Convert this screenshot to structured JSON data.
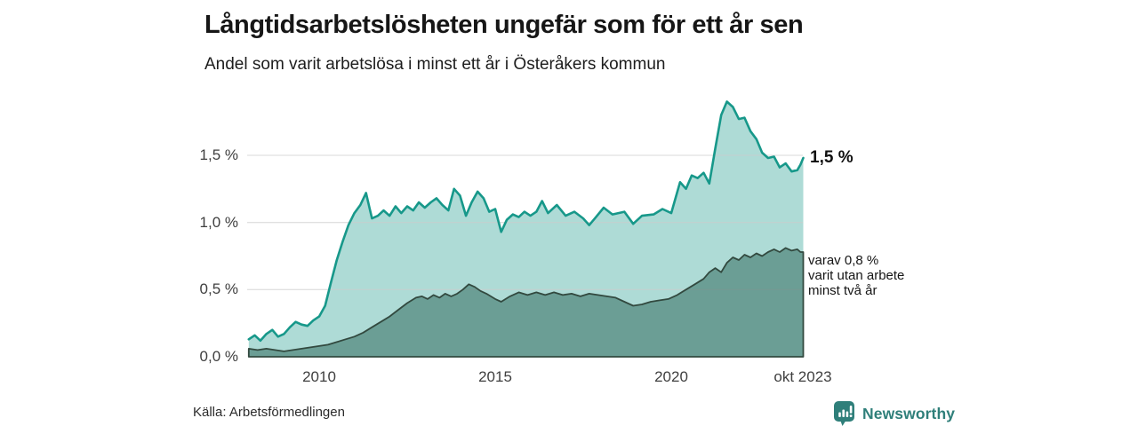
{
  "title": "Långtidsarbetslösheten ungefär som för ett år sen",
  "subtitle": "Andel som varit arbetslösa i minst ett år i Österåkers kommun",
  "source": "Källa: Arbetsförmedlingen",
  "brand": {
    "name": "Newsworthy",
    "color": "#2f7f7a"
  },
  "annotations": {
    "end_value_total": "1,5 %",
    "end_secondary_lines": [
      "varav 0,8 %",
      "varit utan arbete",
      "minst två år"
    ]
  },
  "y_axis": {
    "ticks": [
      {
        "label": "0,0 %",
        "value": 0.0
      },
      {
        "label": "0,5 %",
        "value": 0.5
      },
      {
        "label": "1,0 %",
        "value": 1.0
      },
      {
        "label": "1,5 %",
        "value": 1.5
      }
    ]
  },
  "x_axis": {
    "ticks": [
      {
        "label": "2010",
        "year": 2010
      },
      {
        "label": "2015",
        "year": 2015
      },
      {
        "label": "2020",
        "year": 2020
      },
      {
        "label": "okt 2023",
        "year": 2023.75
      }
    ]
  },
  "chart_data": {
    "type": "area",
    "title": "Långtidsarbetslösheten ungefär som för ett år sen",
    "subtitle": "Andel som varit arbetslösa i minst ett år i Österåkers kommun",
    "unit": "%",
    "x_range": [
      2008,
      2023.75
    ],
    "ylim": [
      0,
      1.9
    ],
    "grid": true,
    "colors": {
      "total_line": "#17988a",
      "total_fill": "rgba(23,152,138,0.35)",
      "secondary_line": "#32493f",
      "secondary_fill": "rgba(53,107,96,0.55)",
      "gridline": "#cccccc"
    },
    "series": [
      {
        "name": "Andel arbetslösa minst ett år",
        "end_label": "1,5 %",
        "points": [
          [
            2008.0,
            0.13
          ],
          [
            2008.17,
            0.16
          ],
          [
            2008.33,
            0.12
          ],
          [
            2008.5,
            0.17
          ],
          [
            2008.67,
            0.2
          ],
          [
            2008.83,
            0.15
          ],
          [
            2009.0,
            0.17
          ],
          [
            2009.17,
            0.22
          ],
          [
            2009.33,
            0.26
          ],
          [
            2009.5,
            0.24
          ],
          [
            2009.67,
            0.23
          ],
          [
            2009.83,
            0.27
          ],
          [
            2010.0,
            0.3
          ],
          [
            2010.17,
            0.38
          ],
          [
            2010.33,
            0.55
          ],
          [
            2010.5,
            0.72
          ],
          [
            2010.67,
            0.86
          ],
          [
            2010.83,
            0.98
          ],
          [
            2011.0,
            1.07
          ],
          [
            2011.17,
            1.13
          ],
          [
            2011.33,
            1.22
          ],
          [
            2011.42,
            1.12
          ],
          [
            2011.5,
            1.03
          ],
          [
            2011.67,
            1.05
          ],
          [
            2011.83,
            1.09
          ],
          [
            2012.0,
            1.05
          ],
          [
            2012.17,
            1.12
          ],
          [
            2012.33,
            1.07
          ],
          [
            2012.5,
            1.12
          ],
          [
            2012.67,
            1.09
          ],
          [
            2012.83,
            1.15
          ],
          [
            2013.0,
            1.11
          ],
          [
            2013.17,
            1.15
          ],
          [
            2013.33,
            1.18
          ],
          [
            2013.5,
            1.13
          ],
          [
            2013.67,
            1.09
          ],
          [
            2013.83,
            1.25
          ],
          [
            2014.0,
            1.2
          ],
          [
            2014.17,
            1.05
          ],
          [
            2014.33,
            1.15
          ],
          [
            2014.5,
            1.23
          ],
          [
            2014.67,
            1.18
          ],
          [
            2014.83,
            1.08
          ],
          [
            2015.0,
            1.1
          ],
          [
            2015.17,
            0.93
          ],
          [
            2015.33,
            1.02
          ],
          [
            2015.5,
            1.06
          ],
          [
            2015.67,
            1.04
          ],
          [
            2015.83,
            1.08
          ],
          [
            2016.0,
            1.05
          ],
          [
            2016.17,
            1.08
          ],
          [
            2016.33,
            1.16
          ],
          [
            2016.5,
            1.07
          ],
          [
            2016.75,
            1.13
          ],
          [
            2017.0,
            1.05
          ],
          [
            2017.25,
            1.08
          ],
          [
            2017.5,
            1.03
          ],
          [
            2017.67,
            0.98
          ],
          [
            2017.83,
            1.03
          ],
          [
            2018.08,
            1.11
          ],
          [
            2018.33,
            1.06
          ],
          [
            2018.67,
            1.08
          ],
          [
            2018.92,
            0.99
          ],
          [
            2019.17,
            1.05
          ],
          [
            2019.5,
            1.06
          ],
          [
            2019.75,
            1.1
          ],
          [
            2020.0,
            1.07
          ],
          [
            2020.25,
            1.3
          ],
          [
            2020.42,
            1.25
          ],
          [
            2020.58,
            1.35
          ],
          [
            2020.75,
            1.33
          ],
          [
            2020.92,
            1.37
          ],
          [
            2021.08,
            1.29
          ],
          [
            2021.25,
            1.55
          ],
          [
            2021.42,
            1.8
          ],
          [
            2021.58,
            1.9
          ],
          [
            2021.75,
            1.86
          ],
          [
            2021.92,
            1.77
          ],
          [
            2022.08,
            1.78
          ],
          [
            2022.25,
            1.68
          ],
          [
            2022.42,
            1.62
          ],
          [
            2022.58,
            1.52
          ],
          [
            2022.75,
            1.48
          ],
          [
            2022.92,
            1.49
          ],
          [
            2023.08,
            1.41
          ],
          [
            2023.25,
            1.44
          ],
          [
            2023.42,
            1.38
          ],
          [
            2023.58,
            1.39
          ],
          [
            2023.67,
            1.43
          ],
          [
            2023.75,
            1.48
          ]
        ]
      },
      {
        "name": "varav utan arbete minst två år",
        "end_label": "varav 0,8 %",
        "points": [
          [
            2008.0,
            0.06
          ],
          [
            2008.25,
            0.05
          ],
          [
            2008.5,
            0.06
          ],
          [
            2008.75,
            0.05
          ],
          [
            2009.0,
            0.04
          ],
          [
            2009.25,
            0.05
          ],
          [
            2009.5,
            0.06
          ],
          [
            2009.75,
            0.07
          ],
          [
            2010.0,
            0.08
          ],
          [
            2010.25,
            0.09
          ],
          [
            2010.5,
            0.11
          ],
          [
            2010.75,
            0.13
          ],
          [
            2011.0,
            0.15
          ],
          [
            2011.25,
            0.18
          ],
          [
            2011.5,
            0.22
          ],
          [
            2011.75,
            0.26
          ],
          [
            2012.0,
            0.3
          ],
          [
            2012.25,
            0.35
          ],
          [
            2012.5,
            0.4
          ],
          [
            2012.75,
            0.44
          ],
          [
            2012.92,
            0.45
          ],
          [
            2013.08,
            0.43
          ],
          [
            2013.25,
            0.46
          ],
          [
            2013.42,
            0.44
          ],
          [
            2013.58,
            0.47
          ],
          [
            2013.75,
            0.45
          ],
          [
            2013.92,
            0.47
          ],
          [
            2014.08,
            0.5
          ],
          [
            2014.25,
            0.54
          ],
          [
            2014.42,
            0.52
          ],
          [
            2014.58,
            0.49
          ],
          [
            2014.75,
            0.47
          ],
          [
            2015.0,
            0.43
          ],
          [
            2015.17,
            0.41
          ],
          [
            2015.42,
            0.45
          ],
          [
            2015.67,
            0.48
          ],
          [
            2015.92,
            0.46
          ],
          [
            2016.17,
            0.48
          ],
          [
            2016.42,
            0.46
          ],
          [
            2016.67,
            0.48
          ],
          [
            2016.92,
            0.46
          ],
          [
            2017.17,
            0.47
          ],
          [
            2017.42,
            0.45
          ],
          [
            2017.67,
            0.47
          ],
          [
            2017.92,
            0.46
          ],
          [
            2018.17,
            0.45
          ],
          [
            2018.42,
            0.44
          ],
          [
            2018.67,
            0.41
          ],
          [
            2018.92,
            0.38
          ],
          [
            2019.17,
            0.39
          ],
          [
            2019.42,
            0.41
          ],
          [
            2019.67,
            0.42
          ],
          [
            2019.92,
            0.43
          ],
          [
            2020.17,
            0.46
          ],
          [
            2020.42,
            0.5
          ],
          [
            2020.67,
            0.54
          ],
          [
            2020.92,
            0.58
          ],
          [
            2021.08,
            0.63
          ],
          [
            2021.25,
            0.66
          ],
          [
            2021.42,
            0.63
          ],
          [
            2021.58,
            0.7
          ],
          [
            2021.75,
            0.74
          ],
          [
            2021.92,
            0.72
          ],
          [
            2022.08,
            0.76
          ],
          [
            2022.25,
            0.74
          ],
          [
            2022.42,
            0.77
          ],
          [
            2022.58,
            0.75
          ],
          [
            2022.75,
            0.78
          ],
          [
            2022.92,
            0.8
          ],
          [
            2023.08,
            0.78
          ],
          [
            2023.25,
            0.81
          ],
          [
            2023.42,
            0.79
          ],
          [
            2023.58,
            0.8
          ],
          [
            2023.67,
            0.78
          ],
          [
            2023.75,
            0.78
          ]
        ]
      }
    ]
  }
}
